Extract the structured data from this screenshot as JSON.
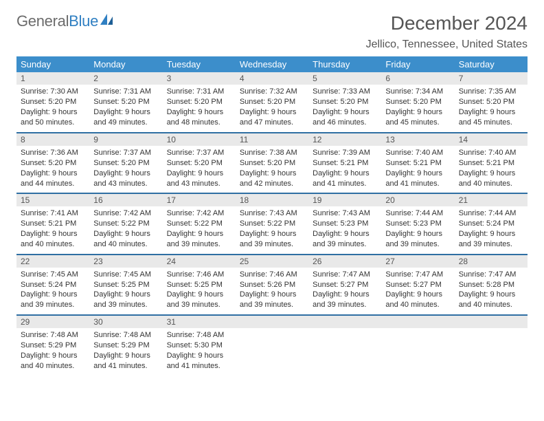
{
  "brand": {
    "part1": "General",
    "part2": "Blue"
  },
  "title": "December 2024",
  "location": "Jellico, Tennessee, United States",
  "colors": {
    "header_bg": "#3c8ecb",
    "row_divider": "#2f6fa3",
    "daynum_bg": "#e9e9e9",
    "text": "#333333",
    "title_text": "#555555",
    "brand_gray": "#6b6b6b",
    "brand_blue": "#2f7fc2",
    "page_bg": "#ffffff"
  },
  "weekdays": [
    "Sunday",
    "Monday",
    "Tuesday",
    "Wednesday",
    "Thursday",
    "Friday",
    "Saturday"
  ],
  "weeks": [
    [
      {
        "n": "1",
        "sunrise": "7:30 AM",
        "sunset": "5:20 PM",
        "dl": "9 hours and 50 minutes."
      },
      {
        "n": "2",
        "sunrise": "7:31 AM",
        "sunset": "5:20 PM",
        "dl": "9 hours and 49 minutes."
      },
      {
        "n": "3",
        "sunrise": "7:31 AM",
        "sunset": "5:20 PM",
        "dl": "9 hours and 48 minutes."
      },
      {
        "n": "4",
        "sunrise": "7:32 AM",
        "sunset": "5:20 PM",
        "dl": "9 hours and 47 minutes."
      },
      {
        "n": "5",
        "sunrise": "7:33 AM",
        "sunset": "5:20 PM",
        "dl": "9 hours and 46 minutes."
      },
      {
        "n": "6",
        "sunrise": "7:34 AM",
        "sunset": "5:20 PM",
        "dl": "9 hours and 45 minutes."
      },
      {
        "n": "7",
        "sunrise": "7:35 AM",
        "sunset": "5:20 PM",
        "dl": "9 hours and 45 minutes."
      }
    ],
    [
      {
        "n": "8",
        "sunrise": "7:36 AM",
        "sunset": "5:20 PM",
        "dl": "9 hours and 44 minutes."
      },
      {
        "n": "9",
        "sunrise": "7:37 AM",
        "sunset": "5:20 PM",
        "dl": "9 hours and 43 minutes."
      },
      {
        "n": "10",
        "sunrise": "7:37 AM",
        "sunset": "5:20 PM",
        "dl": "9 hours and 43 minutes."
      },
      {
        "n": "11",
        "sunrise": "7:38 AM",
        "sunset": "5:20 PM",
        "dl": "9 hours and 42 minutes."
      },
      {
        "n": "12",
        "sunrise": "7:39 AM",
        "sunset": "5:21 PM",
        "dl": "9 hours and 41 minutes."
      },
      {
        "n": "13",
        "sunrise": "7:40 AM",
        "sunset": "5:21 PM",
        "dl": "9 hours and 41 minutes."
      },
      {
        "n": "14",
        "sunrise": "7:40 AM",
        "sunset": "5:21 PM",
        "dl": "9 hours and 40 minutes."
      }
    ],
    [
      {
        "n": "15",
        "sunrise": "7:41 AM",
        "sunset": "5:21 PM",
        "dl": "9 hours and 40 minutes."
      },
      {
        "n": "16",
        "sunrise": "7:42 AM",
        "sunset": "5:22 PM",
        "dl": "9 hours and 40 minutes."
      },
      {
        "n": "17",
        "sunrise": "7:42 AM",
        "sunset": "5:22 PM",
        "dl": "9 hours and 39 minutes."
      },
      {
        "n": "18",
        "sunrise": "7:43 AM",
        "sunset": "5:22 PM",
        "dl": "9 hours and 39 minutes."
      },
      {
        "n": "19",
        "sunrise": "7:43 AM",
        "sunset": "5:23 PM",
        "dl": "9 hours and 39 minutes."
      },
      {
        "n": "20",
        "sunrise": "7:44 AM",
        "sunset": "5:23 PM",
        "dl": "9 hours and 39 minutes."
      },
      {
        "n": "21",
        "sunrise": "7:44 AM",
        "sunset": "5:24 PM",
        "dl": "9 hours and 39 minutes."
      }
    ],
    [
      {
        "n": "22",
        "sunrise": "7:45 AM",
        "sunset": "5:24 PM",
        "dl": "9 hours and 39 minutes."
      },
      {
        "n": "23",
        "sunrise": "7:45 AM",
        "sunset": "5:25 PM",
        "dl": "9 hours and 39 minutes."
      },
      {
        "n": "24",
        "sunrise": "7:46 AM",
        "sunset": "5:25 PM",
        "dl": "9 hours and 39 minutes."
      },
      {
        "n": "25",
        "sunrise": "7:46 AM",
        "sunset": "5:26 PM",
        "dl": "9 hours and 39 minutes."
      },
      {
        "n": "26",
        "sunrise": "7:47 AM",
        "sunset": "5:27 PM",
        "dl": "9 hours and 39 minutes."
      },
      {
        "n": "27",
        "sunrise": "7:47 AM",
        "sunset": "5:27 PM",
        "dl": "9 hours and 40 minutes."
      },
      {
        "n": "28",
        "sunrise": "7:47 AM",
        "sunset": "5:28 PM",
        "dl": "9 hours and 40 minutes."
      }
    ],
    [
      {
        "n": "29",
        "sunrise": "7:48 AM",
        "sunset": "5:29 PM",
        "dl": "9 hours and 40 minutes."
      },
      {
        "n": "30",
        "sunrise": "7:48 AM",
        "sunset": "5:29 PM",
        "dl": "9 hours and 41 minutes."
      },
      {
        "n": "31",
        "sunrise": "7:48 AM",
        "sunset": "5:30 PM",
        "dl": "9 hours and 41 minutes."
      },
      null,
      null,
      null,
      null
    ]
  ],
  "labels": {
    "sunrise": "Sunrise:",
    "sunset": "Sunset:",
    "daylight": "Daylight:"
  }
}
